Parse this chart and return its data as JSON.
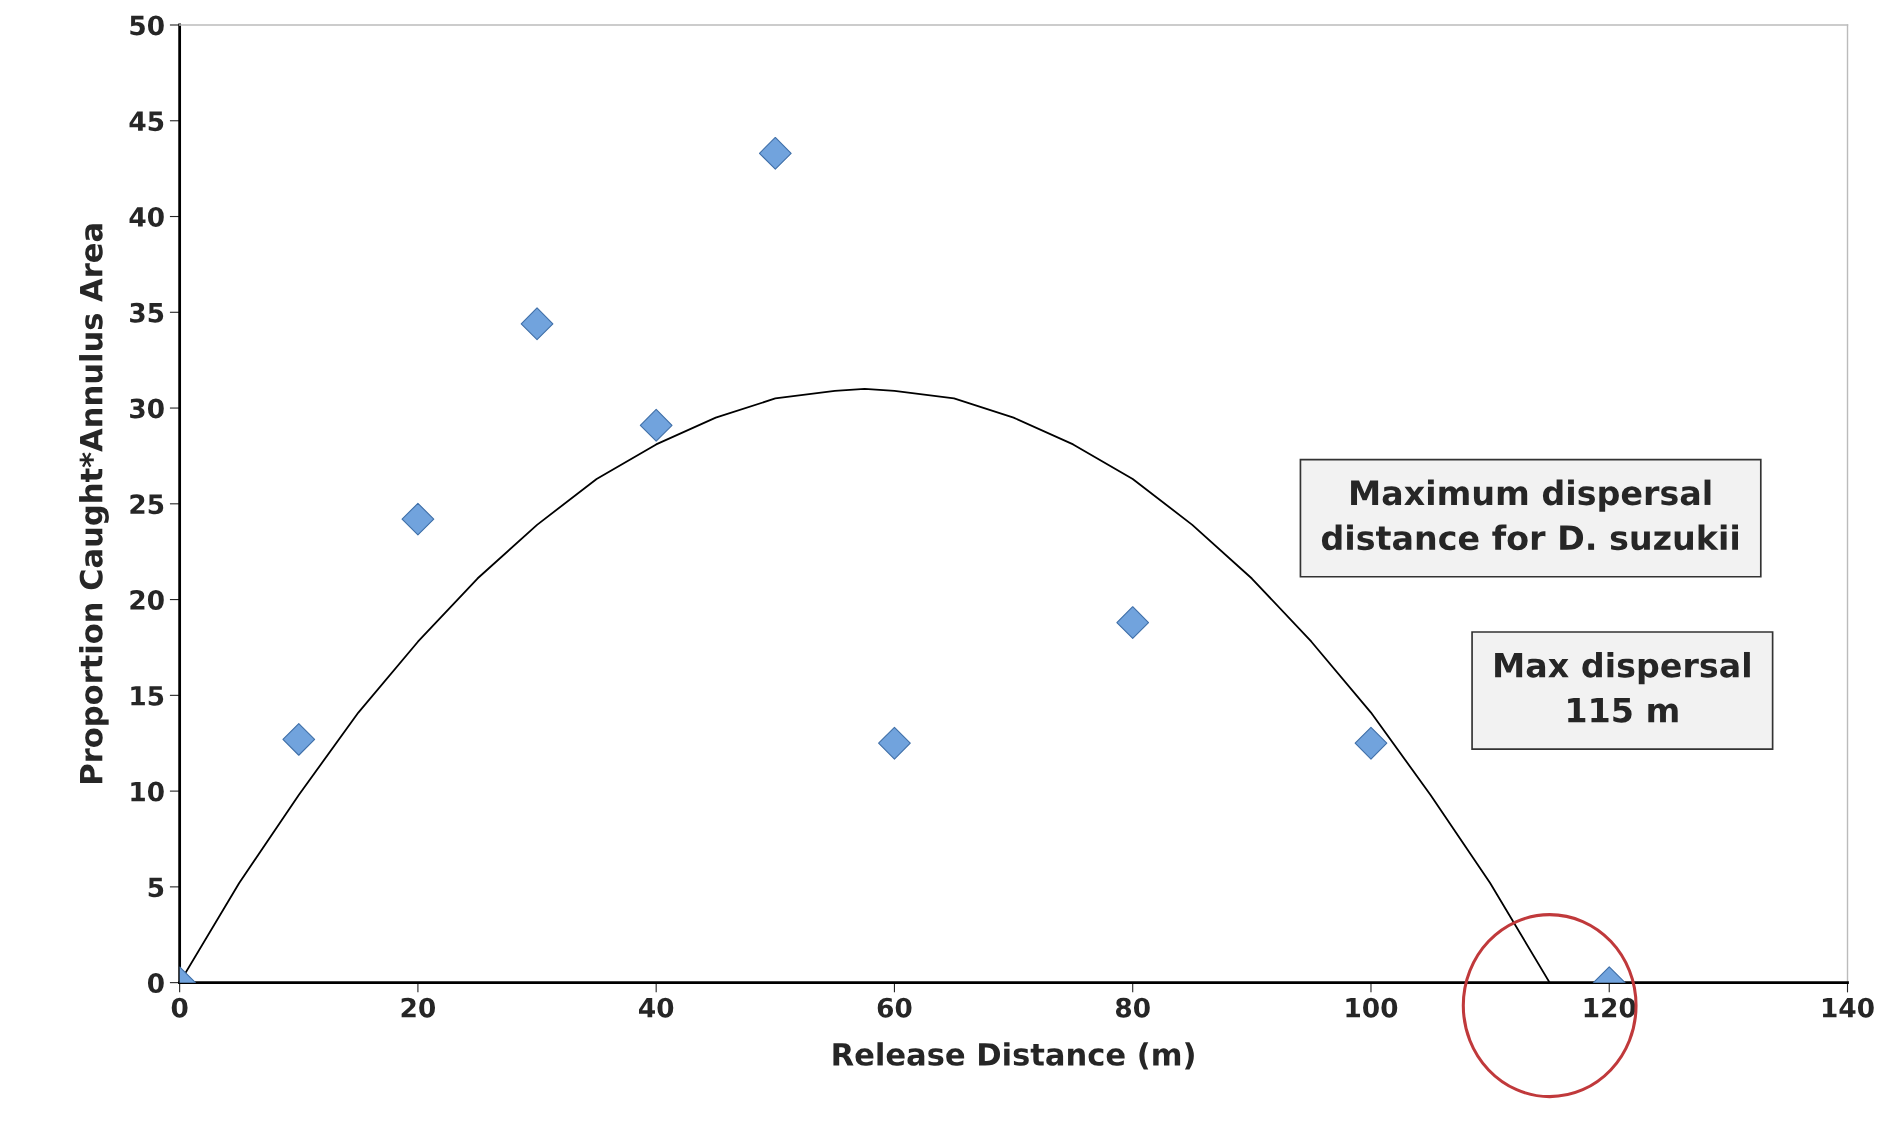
{
  "chart_data": {
    "type": "scatter",
    "xlabel": "Release Distance (m)",
    "ylabel": "Proportion Caught*Annulus Area",
    "annotations": [
      "Maximum dispersal\ndistance for D. suzukii",
      "Max dispersal\n115 m"
    ],
    "series": [
      {
        "type": "scatter",
        "color": "#71a3dd",
        "marker": "diamond",
        "x": [
          0,
          10,
          20,
          30,
          40,
          50,
          60,
          80,
          100,
          120
        ],
        "values": [
          0,
          12.7,
          24.2,
          34.4,
          29.1,
          43.3,
          12.5,
          18.8,
          12.5,
          0
        ]
      },
      {
        "type": "line",
        "color": "#000000",
        "line_style": "solid",
        "x": [
          0,
          5,
          10,
          15,
          20,
          25,
          30,
          35,
          40,
          45,
          50,
          55,
          57.5,
          60,
          65,
          70,
          75,
          80,
          85,
          90,
          95,
          100,
          105,
          110,
          115
        ],
        "values": [
          0,
          5.2,
          9.8,
          14.1,
          17.8,
          21.1,
          23.9,
          26.3,
          28.1,
          29.5,
          30.5,
          30.9,
          31,
          30.9,
          30.5,
          29.5,
          28.1,
          26.3,
          23.9,
          21.1,
          17.8,
          14.1,
          9.8,
          5.2,
          0
        ]
      }
    ],
    "xlim": [
      0,
      140
    ],
    "xticks": [
      0,
      20,
      40,
      60,
      80,
      100,
      120,
      140
    ],
    "ylim": [
      0,
      50
    ],
    "yticks": [
      0,
      5,
      10,
      15,
      20,
      25,
      30,
      35,
      40,
      45,
      50
    ],
    "grid": false,
    "legend": false
  }
}
